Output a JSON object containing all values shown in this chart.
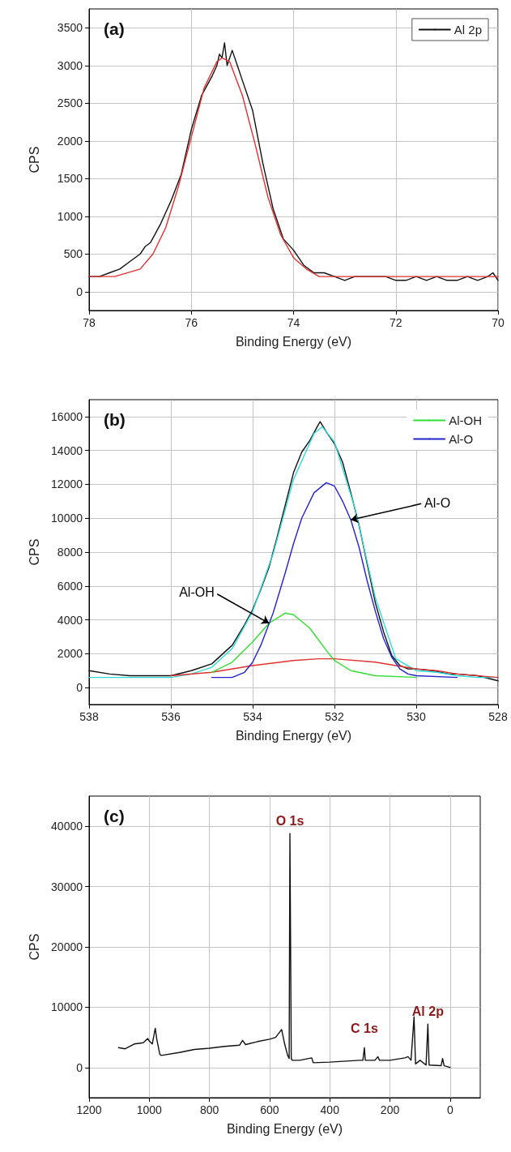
{
  "chart_data": [
    {
      "type": "line",
      "xlabel": "Binding Energy (eV)",
      "ylabel": "CPS",
      "annotations": [
        "(a)"
      ],
      "xlim": [
        78,
        70
      ],
      "xticks": [
        78,
        76,
        74,
        72,
        70
      ],
      "ylim": [
        -250,
        3750
      ],
      "yticks": [
        0,
        500,
        1000,
        1500,
        2000,
        2500,
        3000,
        3500
      ],
      "grid": true,
      "legend": "top right",
      "marker": "none",
      "line_style": "solid",
      "series": [
        {
          "name": "Al 2p",
          "color": "#111111",
          "x": [
            78,
            77.8,
            77.6,
            77.4,
            77.2,
            77,
            76.9,
            76.8,
            76.6,
            76.4,
            76.2,
            76,
            75.8,
            75.6,
            75.5,
            75.45,
            75.4,
            75.35,
            75.3,
            75.2,
            75.1,
            75,
            74.8,
            74.6,
            74.4,
            74.2,
            74,
            73.8,
            73.6,
            73.4,
            73.2,
            73,
            72.8,
            72.6,
            72.4,
            72.2,
            72,
            71.8,
            71.6,
            71.4,
            71.2,
            71,
            70.8,
            70.6,
            70.4,
            70.2,
            70.1,
            70
          ],
          "values": [
            200,
            200,
            250,
            300,
            400,
            500,
            600,
            650,
            900,
            1200,
            1550,
            2150,
            2600,
            2850,
            3000,
            3150,
            3100,
            3300,
            3000,
            3200,
            3000,
            2800,
            2400,
            1700,
            1100,
            700,
            550,
            350,
            250,
            250,
            200,
            150,
            200,
            200,
            200,
            200,
            150,
            150,
            200,
            150,
            200,
            150,
            150,
            200,
            150,
            200,
            250,
            150
          ]
        },
        {
          "color": "#e03030",
          "x": [
            78,
            77.5,
            77,
            76.75,
            76.5,
            76.25,
            76,
            75.75,
            75.5,
            75.4,
            75.25,
            75,
            74.75,
            74.5,
            74.25,
            74,
            73.75,
            73.5,
            73,
            72,
            71,
            70
          ],
          "values": [
            200,
            200,
            300,
            500,
            850,
            1400,
            2050,
            2700,
            3050,
            3100,
            3050,
            2600,
            1950,
            1250,
            750,
            450,
            300,
            200,
            200,
            200,
            200,
            200
          ]
        }
      ]
    },
    {
      "type": "line",
      "xlabel": "Binding Energy (eV)",
      "ylabel": "CPS",
      "annotations": [
        "(b)",
        {
          "text": "Al-OH",
          "x": 533.6,
          "y": 3800
        },
        {
          "text": "Al-O",
          "x": 531.6,
          "y": 9900
        }
      ],
      "xlim": [
        538,
        528
      ],
      "xticks": [
        538,
        536,
        534,
        532,
        530,
        528
      ],
      "ylim": [
        -1000,
        17000
      ],
      "yticks": [
        0,
        2000,
        4000,
        6000,
        8000,
        10000,
        12000,
        14000,
        16000
      ],
      "grid": true,
      "legend": "top right",
      "marker": "none",
      "line_style": "solid",
      "series": [
        {
          "color": "#111111",
          "x": [
            538,
            537.5,
            537,
            536.5,
            536,
            535.5,
            535,
            534.5,
            534.2,
            534,
            533.8,
            533.6,
            533.4,
            533.2,
            533,
            532.8,
            532.6,
            532.4,
            532.35,
            532.2,
            532,
            531.8,
            531.6,
            531.4,
            531.2,
            531,
            530.8,
            530.6,
            530.4,
            530.2,
            530,
            529.6,
            529.4,
            529.2,
            529,
            528.5,
            528
          ],
          "values": [
            1000,
            800,
            700,
            700,
            700,
            1000,
            1400,
            2500,
            3700,
            4600,
            5800,
            7100,
            8900,
            10800,
            12700,
            13900,
            14600,
            15500,
            15700,
            15100,
            14400,
            13300,
            11500,
            9600,
            7300,
            5000,
            3300,
            1900,
            1300,
            1100,
            1100,
            1000,
            900,
            800,
            800,
            700,
            400
          ]
        },
        {
          "color": "#30d8d8",
          "x": [
            538,
            537,
            536,
            535.5,
            535,
            534.5,
            534,
            533.5,
            533,
            532.5,
            532.3,
            532,
            531.5,
            531,
            530.5,
            530,
            529.5,
            529,
            528.5,
            528
          ],
          "values": [
            600,
            600,
            600,
            800,
            1200,
            2300,
            4500,
            7900,
            12300,
            15000,
            15400,
            14500,
            10600,
            5300,
            1700,
            1000,
            900,
            700,
            600,
            600
          ]
        },
        {
          "color": "#e03030",
          "x": [
            536,
            535,
            534,
            533,
            532.4,
            532,
            531,
            530,
            529.5,
            529,
            528
          ],
          "values": [
            700,
            900,
            1300,
            1600,
            1700,
            1700,
            1500,
            1100,
            1000,
            800,
            600
          ]
        },
        {
          "name": "Al-OH",
          "color": "#33dd33",
          "x": [
            535,
            534.5,
            534,
            533.6,
            533.2,
            533,
            532.6,
            532.2,
            532,
            531.6,
            531,
            530
          ],
          "values": [
            900,
            1500,
            2700,
            3800,
            4400,
            4300,
            3500,
            2200,
            1600,
            1000,
            700,
            600
          ]
        },
        {
          "name": "Al-O",
          "color": "#2323cc",
          "x": [
            535,
            534.5,
            534.2,
            534,
            533.8,
            533.5,
            533.2,
            533,
            532.8,
            532.5,
            532.2,
            532,
            531.8,
            531.6,
            531.4,
            531.2,
            531,
            530.8,
            530.6,
            530.4,
            530.2,
            530,
            529
          ],
          "values": [
            600,
            600,
            900,
            1500,
            2500,
            4400,
            6800,
            8500,
            10000,
            11500,
            12100,
            11900,
            11000,
            9900,
            8300,
            6300,
            4500,
            2900,
            1800,
            1100,
            800,
            700,
            600
          ]
        }
      ]
    },
    {
      "type": "line",
      "xlabel": "Binding Energy (eV)",
      "ylabel": "CPS",
      "annotations": [
        "(c)",
        {
          "text": "O 1s",
          "x": 532.5,
          "y": 38800
        },
        {
          "text": "C 1s",
          "x": 285,
          "y": 3300
        },
        {
          "text": "Al 2p",
          "x": 74,
          "y": 7200
        }
      ],
      "xlim": [
        1200,
        -100
      ],
      "xticks": [
        1200,
        1000,
        800,
        600,
        400,
        200,
        0
      ],
      "ylim": [
        -5000,
        45000
      ],
      "yticks": [
        0,
        10000,
        20000,
        30000,
        40000
      ],
      "grid": true,
      "marker": "none",
      "line_style": "solid",
      "series": [
        {
          "color": "#111111",
          "x": [
            1102,
            1080,
            1050,
            1020,
            1005,
            1000,
            990,
            985,
            980,
            975,
            965,
            960,
            900,
            850,
            800,
            750,
            700,
            690,
            680,
            640,
            600,
            580,
            560,
            550,
            540,
            535,
            532.5,
            528,
            525,
            500,
            460,
            455,
            400,
            300,
            290,
            285,
            282,
            250,
            240,
            235,
            200,
            150,
            140,
            130,
            120,
            115,
            100,
            80,
            74,
            70,
            30,
            25,
            20,
            5,
            0
          ],
          "values": [
            3300,
            3100,
            3900,
            4100,
            4800,
            4400,
            3900,
            5200,
            6500,
            4700,
            2200,
            2000,
            2500,
            3000,
            3200,
            3500,
            3700,
            4500,
            3800,
            4300,
            4700,
            5000,
            6300,
            3900,
            2000,
            1500,
            38800,
            1500,
            1200,
            1200,
            1600,
            800,
            900,
            1200,
            1200,
            3300,
            1200,
            1200,
            1800,
            1200,
            1200,
            1600,
            1800,
            1200,
            8400,
            600,
            1200,
            400,
            7200,
            400,
            300,
            1500,
            300,
            100,
            0
          ]
        }
      ]
    }
  ]
}
